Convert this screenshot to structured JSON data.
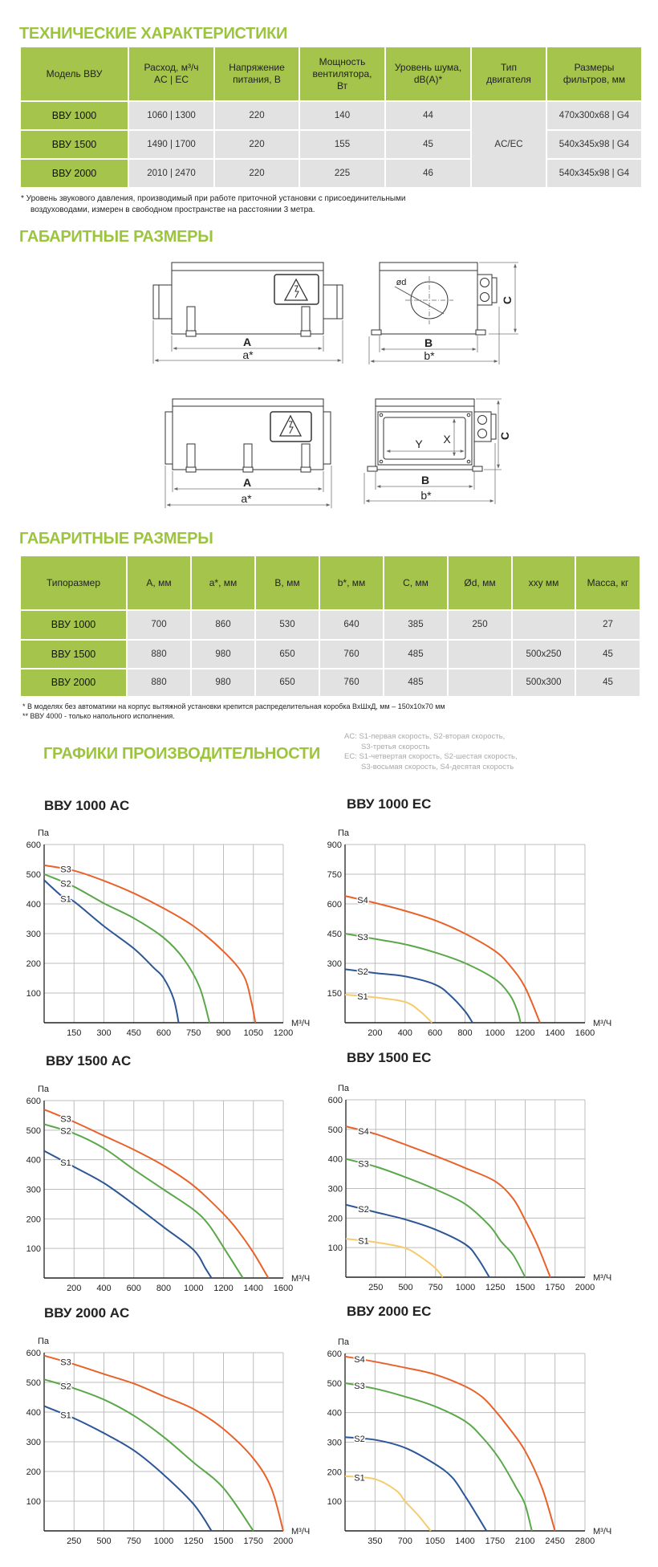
{
  "tech": {
    "title": "ТЕХНИЧЕСКИЕ ХАРАКТЕРИСТИКИ",
    "headers": [
      "Модель ВВУ",
      "Расход, м³/ч\nAC | EC",
      "Напряжение\nпитания, В",
      "Мощность\nвентилятора,\nВт",
      "Уровень шума,\ndB(A)*",
      "Тип\nдвигателя",
      "Размеры\nфильтров, мм"
    ],
    "rows": [
      {
        "model": "ВВУ 1000",
        "flow": "1060 | 1300",
        "voltage": "220",
        "power": "140",
        "noise": "44",
        "filter": "470x300x68 | G4"
      },
      {
        "model": "ВВУ 1500",
        "flow": "1490 | 1700",
        "voltage": "220",
        "power": "155",
        "noise": "45",
        "filter": "540x345x98 | G4"
      },
      {
        "model": "ВВУ 2000",
        "flow": "2010 | 2470",
        "voltage": "220",
        "power": "225",
        "noise": "46",
        "filter": "540x345x98 | G4"
      }
    ],
    "motor_type": "AC/EC",
    "footnote_1": "*  Уровень звукового давления, производимый при работе приточной установки с присоединительными",
    "footnote_2": "воздуховодами, измерен в свободном пространстве на расстоянии 3 метра."
  },
  "drawings": {
    "title": "ГАБАРИТНЫЕ РАЗМЕРЫ",
    "labels": {
      "A": "A",
      "a": "a*",
      "B": "B",
      "b": "b*",
      "C": "C",
      "d": "ød",
      "X": "X",
      "Y": "Y"
    }
  },
  "dims": {
    "title": "ГАБАРИТНЫЕ РАЗМЕРЫ",
    "headers": [
      "Типоразмер",
      "А, мм",
      "a*, мм",
      "B, мм",
      "b*, мм",
      "C, мм",
      "Ød, мм",
      "xxy мм",
      "Масса, кг"
    ],
    "rows": [
      [
        "ВВУ 1000",
        "700",
        "860",
        "530",
        "640",
        "385",
        "250",
        "",
        "27"
      ],
      [
        "ВВУ 1500",
        "880",
        "980",
        "650",
        "760",
        "485",
        "",
        "500x250",
        "45"
      ],
      [
        "ВВУ 2000",
        "880",
        "980",
        "650",
        "760",
        "485",
        "",
        "500x300",
        "45"
      ]
    ],
    "footnote_1": "*   В моделях без автоматики на корпус вытяжной установки крепится распределительная коробка ВхШхД, мм – 150х10х70 мм",
    "footnote_2": "** ВВУ 4000 - только напольного исполнения."
  },
  "performance": {
    "title": "ГРАФИКИ ПРОИЗВОДИТЕЛЬНОСТИ",
    "legend": [
      "AC: S1-первая скорость, S2-вторая скорость,",
      "S3-третья скорость",
      "EC:  S1-четвертая скорость, S2-шестая скорость,",
      "S3-восьмая скорость, S4-десятая скорость"
    ]
  },
  "colors": {
    "accent_green": "#9cc43d",
    "table_header": "#a5c44b",
    "table_cell": "#e2e2e2",
    "S1_AC": "#2c5697",
    "S1_EC": "#f6cb6c",
    "S2_AC": "#5aa84a",
    "S2_EC": "#2c5697",
    "S3_AC": "#e8622a",
    "S3_EC": "#5aa84a",
    "S4": "#e8622a"
  },
  "chart_data": [
    {
      "type": "line",
      "title": "ВВУ 1000 AC",
      "ylabel": "Па",
      "xlabel": "М³/Ч",
      "xlim": [
        0,
        1200
      ],
      "ylim": [
        0,
        600
      ],
      "grid": true,
      "xticks": [
        150,
        300,
        450,
        600,
        750,
        900,
        1050,
        1200
      ],
      "yticks": [
        100,
        200,
        300,
        400,
        500,
        600
      ],
      "series": [
        {
          "name": "S3",
          "color": "#e8622a",
          "points": [
            [
              0,
              530
            ],
            [
              150,
              512
            ],
            [
              300,
              478
            ],
            [
              450,
              436
            ],
            [
              600,
              385
            ],
            [
              750,
              325
            ],
            [
              900,
              240
            ],
            [
              1000,
              160
            ],
            [
              1040,
              70
            ],
            [
              1060,
              0
            ]
          ]
        },
        {
          "name": "S2",
          "color": "#5aa84a",
          "points": [
            [
              0,
              500
            ],
            [
              150,
              458
            ],
            [
              300,
              402
            ],
            [
              450,
              352
            ],
            [
              600,
              286
            ],
            [
              700,
              215
            ],
            [
              780,
              120
            ],
            [
              830,
              0
            ]
          ]
        },
        {
          "name": "S1",
          "color": "#2c5697",
          "points": [
            [
              0,
              480
            ],
            [
              100,
              420
            ],
            [
              150,
              408
            ],
            [
              300,
              325
            ],
            [
              450,
              250
            ],
            [
              550,
              185
            ],
            [
              600,
              150
            ],
            [
              650,
              80
            ],
            [
              675,
              0
            ]
          ]
        }
      ]
    },
    {
      "type": "line",
      "title": "ВВУ 1000 EC",
      "ylabel": "Па",
      "xlabel": "М³/Ч",
      "xlim": [
        0,
        1600
      ],
      "ylim": [
        0,
        900
      ],
      "grid": true,
      "xticks": [
        200,
        400,
        600,
        800,
        1000,
        1200,
        1400,
        1600
      ],
      "yticks": [
        150,
        300,
        450,
        600,
        750,
        900
      ],
      "series": [
        {
          "name": "S4",
          "color": "#e8622a",
          "points": [
            [
              0,
              640
            ],
            [
              200,
              605
            ],
            [
              400,
              565
            ],
            [
              600,
              517
            ],
            [
              800,
              450
            ],
            [
              1000,
              362
            ],
            [
              1100,
              288
            ],
            [
              1200,
              180
            ],
            [
              1300,
              0
            ]
          ]
        },
        {
          "name": "S3",
          "color": "#5aa84a",
          "points": [
            [
              0,
              450
            ],
            [
              200,
              423
            ],
            [
              400,
              396
            ],
            [
              600,
              355
            ],
            [
              800,
              301
            ],
            [
              1000,
              220
            ],
            [
              1100,
              139
            ],
            [
              1150,
              58
            ],
            [
              1170,
              0
            ]
          ]
        },
        {
          "name": "S2",
          "color": "#2c5697",
          "points": [
            [
              0,
              270
            ],
            [
              200,
              251
            ],
            [
              400,
              234
            ],
            [
              600,
              193
            ],
            [
              700,
              139
            ],
            [
              800,
              58
            ],
            [
              850,
              0
            ]
          ]
        },
        {
          "name": "S1",
          "color": "#f6cb6c",
          "points": [
            [
              0,
              142
            ],
            [
              200,
              128
            ],
            [
              400,
              105
            ],
            [
              500,
              58
            ],
            [
              580,
              0
            ]
          ]
        }
      ]
    },
    {
      "type": "line",
      "title": "ВВУ 1500 AC",
      "ylabel": "Па",
      "xlabel": "М³/Ч",
      "xlim": [
        0,
        1600
      ],
      "ylim": [
        0,
        600
      ],
      "grid": true,
      "xticks": [
        200,
        400,
        600,
        800,
        1000,
        1200,
        1400,
        1600
      ],
      "yticks": [
        100,
        200,
        300,
        400,
        500,
        600
      ],
      "series": [
        {
          "name": "S3",
          "color": "#e8622a",
          "points": [
            [
              0,
              570
            ],
            [
              200,
              528
            ],
            [
              400,
              481
            ],
            [
              600,
              434
            ],
            [
              800,
              380
            ],
            [
              1000,
              312
            ],
            [
              1200,
              217
            ],
            [
              1300,
              158
            ],
            [
              1400,
              86
            ],
            [
              1500,
              0
            ]
          ]
        },
        {
          "name": "S2",
          "color": "#5aa84a",
          "points": [
            [
              0,
              520
            ],
            [
              200,
              489
            ],
            [
              400,
              439
            ],
            [
              600,
              367
            ],
            [
              800,
              299
            ],
            [
              1000,
              231
            ],
            [
              1100,
              181
            ],
            [
              1200,
              104
            ],
            [
              1330,
              0
            ]
          ]
        },
        {
          "name": "S1",
          "color": "#2c5697",
          "points": [
            [
              0,
              430
            ],
            [
              200,
              376
            ],
            [
              400,
              321
            ],
            [
              600,
              249
            ],
            [
              800,
              172
            ],
            [
              1000,
              95
            ],
            [
              1080,
              32
            ],
            [
              1120,
              0
            ]
          ]
        }
      ]
    },
    {
      "type": "line",
      "title": "ВВУ 1500 EC",
      "ylabel": "Па",
      "xlabel": "М³/Ч",
      "xlim": [
        0,
        2000
      ],
      "ylim": [
        0,
        600
      ],
      "grid": true,
      "xticks": [
        250,
        500,
        750,
        1000,
        1250,
        1500,
        1750,
        2000
      ],
      "yticks": [
        100,
        200,
        300,
        400,
        500,
        600
      ],
      "series": [
        {
          "name": "S4",
          "color": "#e8622a",
          "points": [
            [
              0,
              510
            ],
            [
              250,
              484
            ],
            [
              500,
              448
            ],
            [
              750,
              410
            ],
            [
              1000,
              369
            ],
            [
              1250,
              324
            ],
            [
              1400,
              265
            ],
            [
              1500,
              193
            ],
            [
              1600,
              111
            ],
            [
              1710,
              0
            ]
          ]
        },
        {
          "name": "S3",
          "color": "#5aa84a",
          "points": [
            [
              0,
              400
            ],
            [
              250,
              374
            ],
            [
              500,
              338
            ],
            [
              750,
              297
            ],
            [
              1000,
              247
            ],
            [
              1200,
              175
            ],
            [
              1300,
              120
            ],
            [
              1400,
              75
            ],
            [
              1500,
              0
            ]
          ]
        },
        {
          "name": "S2",
          "color": "#2c5697",
          "points": [
            [
              0,
              245
            ],
            [
              250,
              220
            ],
            [
              500,
              195
            ],
            [
              750,
              161
            ],
            [
              1000,
              111
            ],
            [
              1100,
              66
            ],
            [
              1200,
              0
            ]
          ]
        },
        {
          "name": "S1",
          "color": "#f6cb6c",
          "points": [
            [
              0,
              130
            ],
            [
              250,
              118
            ],
            [
              500,
              98
            ],
            [
              650,
              62
            ],
            [
              750,
              30
            ],
            [
              810,
              0
            ]
          ]
        }
      ]
    },
    {
      "type": "line",
      "title": "ВВУ 2000 AC",
      "ylabel": "Па",
      "xlabel": "М³/Ч",
      "xlim": [
        0,
        2000
      ],
      "ylim": [
        0,
        600
      ],
      "grid": true,
      "xticks": [
        250,
        500,
        750,
        1000,
        1250,
        1500,
        1750,
        2000
      ],
      "yticks": [
        100,
        200,
        300,
        400,
        500,
        600
      ],
      "series": [
        {
          "name": "S3",
          "color": "#e8622a",
          "points": [
            [
              0,
              590
            ],
            [
              250,
              561
            ],
            [
              500,
              528
            ],
            [
              750,
              496
            ],
            [
              1000,
              453
            ],
            [
              1250,
              410
            ],
            [
              1500,
              343
            ],
            [
              1750,
              244
            ],
            [
              1900,
              144
            ],
            [
              2000,
              0
            ]
          ]
        },
        {
          "name": "S2",
          "color": "#5aa84a",
          "points": [
            [
              0,
              510
            ],
            [
              250,
              480
            ],
            [
              500,
              442
            ],
            [
              750,
              388
            ],
            [
              1000,
              316
            ],
            [
              1250,
              230
            ],
            [
              1500,
              144
            ],
            [
              1750,
              0
            ]
          ]
        },
        {
          "name": "S1",
          "color": "#2c5697",
          "points": [
            [
              0,
              420
            ],
            [
              250,
              379
            ],
            [
              500,
              329
            ],
            [
              750,
              271
            ],
            [
              1000,
              189
            ],
            [
              1250,
              90
            ],
            [
              1400,
              0
            ]
          ]
        }
      ]
    },
    {
      "type": "line",
      "title": "ВВУ 2000 EC",
      "ylabel": "Па",
      "xlabel": "М³/Ч",
      "xlim": [
        0,
        2800
      ],
      "ylim": [
        0,
        600
      ],
      "grid": true,
      "xticks": [
        350,
        700,
        1050,
        1400,
        1750,
        2100,
        2450,
        2800
      ],
      "yticks": [
        100,
        200,
        300,
        400,
        500,
        600
      ],
      "series": [
        {
          "name": "S4",
          "color": "#e8622a",
          "points": [
            [
              0,
              590
            ],
            [
              350,
              572
            ],
            [
              700,
              552
            ],
            [
              1050,
              529
            ],
            [
              1400,
              489
            ],
            [
              1600,
              453
            ],
            [
              1750,
              407
            ],
            [
              1900,
              353
            ],
            [
              2100,
              271
            ],
            [
              2300,
              145
            ],
            [
              2450,
              0
            ]
          ]
        },
        {
          "name": "S3",
          "color": "#5aa84a",
          "points": [
            [
              0,
              500
            ],
            [
              350,
              481
            ],
            [
              700,
              454
            ],
            [
              1050,
              421
            ],
            [
              1400,
              371
            ],
            [
              1600,
              317
            ],
            [
              1800,
              244
            ],
            [
              2000,
              145
            ],
            [
              2100,
              90
            ],
            [
              2180,
              0
            ]
          ]
        },
        {
          "name": "S2",
          "color": "#2c5697",
          "points": [
            [
              0,
              317
            ],
            [
              350,
              308
            ],
            [
              700,
              281
            ],
            [
              1050,
              226
            ],
            [
              1250,
              181
            ],
            [
              1400,
              118
            ],
            [
              1500,
              72
            ],
            [
              1650,
              0
            ]
          ]
        },
        {
          "name": "S1",
          "color": "#f6cb6c",
          "points": [
            [
              0,
              185
            ],
            [
              350,
              175
            ],
            [
              600,
              136
            ],
            [
              700,
              100
            ],
            [
              850,
              54
            ],
            [
              1000,
              0
            ]
          ]
        }
      ]
    }
  ]
}
